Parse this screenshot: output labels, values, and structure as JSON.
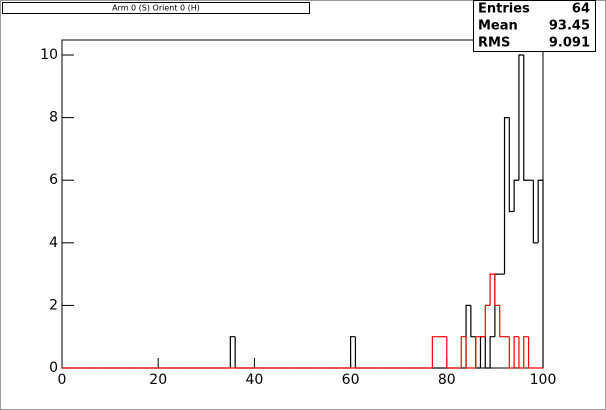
{
  "chart_data": {
    "type": "histogram",
    "title": "Arm 0 (S) Orient 0 (H)",
    "bins": [
      0,
      1,
      2,
      3,
      4,
      5,
      6,
      7,
      8,
      9,
      10,
      11,
      12,
      13,
      14,
      15,
      16,
      17,
      18,
      19,
      20,
      21,
      22,
      23,
      24,
      25,
      26,
      27,
      28,
      29,
      30,
      31,
      32,
      33,
      34,
      35,
      36,
      37,
      38,
      39,
      40,
      41,
      42,
      43,
      44,
      45,
      46,
      47,
      48,
      49,
      50,
      51,
      52,
      53,
      54,
      55,
      56,
      57,
      58,
      59,
      60,
      61,
      62,
      63,
      64,
      65,
      66,
      67,
      68,
      69,
      70,
      71,
      72,
      73,
      74,
      75,
      76,
      77,
      78,
      79,
      80,
      81,
      82,
      83,
      84,
      85,
      86,
      87,
      88,
      89,
      90,
      91,
      92,
      93,
      94,
      95,
      96,
      97,
      98,
      99,
      100
    ],
    "series": [
      {
        "color": "#000000",
        "values": [
          0,
          0,
          0,
          0,
          0,
          0,
          0,
          0,
          0,
          0,
          0,
          0,
          0,
          0,
          0,
          0,
          0,
          0,
          0,
          0,
          0,
          0,
          0,
          0,
          0,
          0,
          0,
          0,
          0,
          0,
          0,
          0,
          0,
          0,
          0,
          1,
          0,
          0,
          0,
          0,
          0,
          0,
          0,
          0,
          0,
          0,
          0,
          0,
          0,
          0,
          0,
          0,
          0,
          0,
          0,
          0,
          0,
          0,
          0,
          0,
          1,
          0,
          0,
          0,
          0,
          0,
          0,
          0,
          0,
          0,
          0,
          0,
          0,
          0,
          0,
          0,
          0,
          0,
          0,
          0,
          0,
          0,
          0,
          0,
          2,
          1,
          0,
          1,
          0,
          1,
          3,
          3,
          8,
          5,
          6,
          10,
          6,
          6,
          4,
          6
        ]
      },
      {
        "color": "#ff0000",
        "values": [
          0,
          0,
          0,
          0,
          0,
          0,
          0,
          0,
          0,
          0,
          0,
          0,
          0,
          0,
          0,
          0,
          0,
          0,
          0,
          0,
          0,
          0,
          0,
          0,
          0,
          0,
          0,
          0,
          0,
          0,
          0,
          0,
          0,
          0,
          0,
          0,
          0,
          0,
          0,
          0,
          0,
          0,
          0,
          0,
          0,
          0,
          0,
          0,
          0,
          0,
          0,
          0,
          0,
          0,
          0,
          0,
          0,
          0,
          0,
          0,
          0,
          0,
          0,
          0,
          0,
          0,
          0,
          0,
          0,
          0,
          0,
          0,
          0,
          0,
          0,
          0,
          0,
          1,
          1,
          1,
          0,
          0,
          0,
          1,
          0,
          0,
          1,
          1,
          2,
          3,
          2,
          1,
          1,
          0,
          1,
          0,
          1,
          0,
          0,
          0
        ]
      }
    ],
    "xlim": [
      0,
      100
    ],
    "xticks": [
      0,
      20,
      40,
      60,
      80,
      100
    ],
    "ylim": [
      0,
      10.48
    ],
    "yticks": [
      0,
      2,
      4,
      6,
      8,
      10
    ],
    "stats": [
      {
        "label": "Entries",
        "value": 64
      },
      {
        "label": "Mean",
        "value": 93.45
      },
      {
        "label": "RMS",
        "value": 9.091
      }
    ]
  }
}
